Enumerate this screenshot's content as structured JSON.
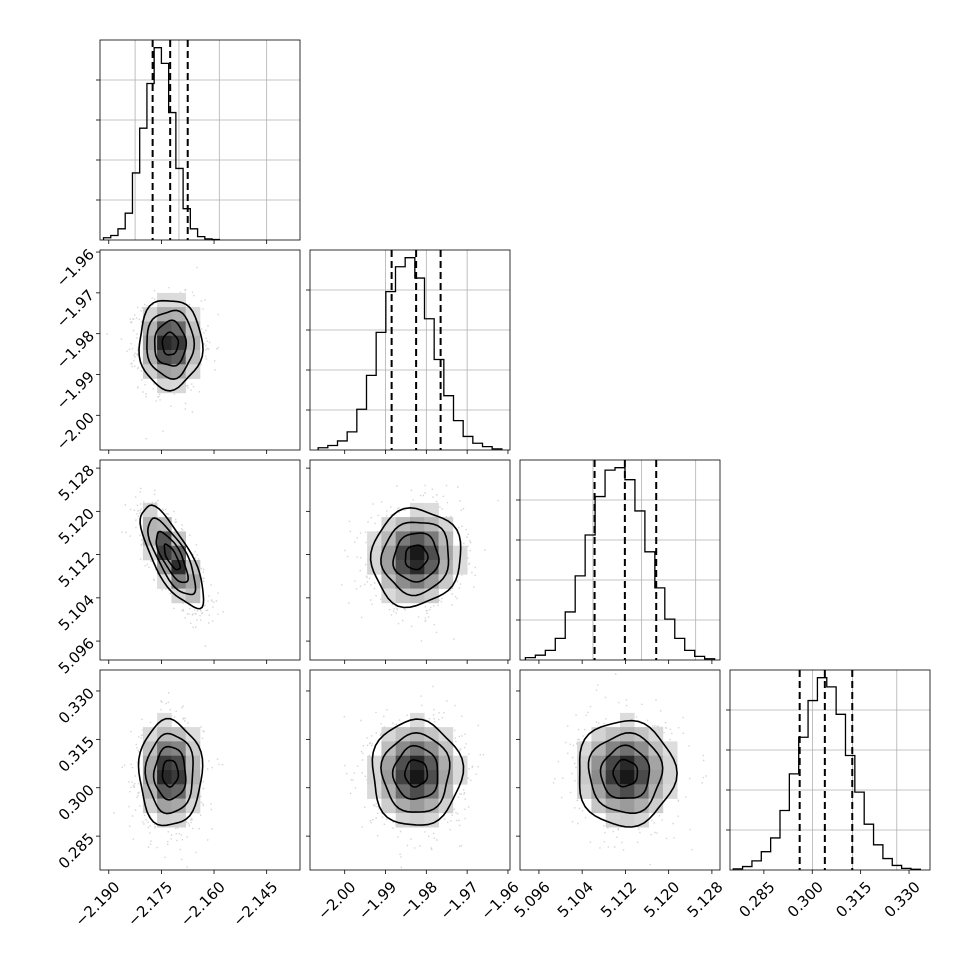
{
  "chart_data": {
    "type": "corner",
    "n_params": 4,
    "params": [
      {
        "range": [
          -2.1925,
          -2.1355
        ],
        "ticks": [
          -2.19,
          -2.175,
          -2.16,
          -2.145
        ],
        "tick_labels": [
          "−2.190",
          "−2.175",
          "−2.160",
          "−2.145"
        ],
        "hist_grid": [
          -2.1825,
          -2.17,
          -2.1585,
          -2.145
        ],
        "quantiles": [
          -2.1775,
          -2.1725,
          -2.1675
        ],
        "hist_range": [
          -2.1915,
          -2.1585
        ],
        "hist": [
          1,
          2,
          5,
          12,
          30,
          50,
          70,
          86,
          79,
          57,
          32,
          14,
          5,
          1.5,
          0.5,
          0.2
        ]
      },
      {
        "range": [
          -2.0085,
          -1.9595
        ],
        "ticks": [
          -2.0,
          -1.99,
          -1.98,
          -1.97,
          -1.96
        ],
        "tick_labels": [
          "−2.00",
          "−1.99",
          "−1.98",
          "−1.97",
          "−1.96"
        ],
        "hist_grid": [
          -1.99,
          -1.98,
          -1.97
        ],
        "quantiles": [
          -1.9885,
          -1.9825,
          -1.9765
        ],
        "hist_range": [
          -2.0065,
          -1.9615
        ],
        "hist": [
          1,
          2,
          4,
          8,
          18,
          33,
          52,
          70,
          81,
          85,
          76,
          58,
          40,
          24,
          13,
          6,
          3,
          1.5,
          0.5
        ]
      },
      {
        "range": [
          5.0925,
          5.1295
        ],
        "ticks": [
          5.096,
          5.104,
          5.112,
          5.12,
          5.128
        ],
        "tick_labels": [
          "5.096",
          "5.104",
          "5.112",
          "5.120",
          "5.128"
        ],
        "hist_grid": [
          5.106,
          5.115,
          5.125
        ],
        "quantiles": [
          5.1063,
          5.1119,
          5.1177
        ],
        "hist_range": [
          5.0935,
          5.1285
        ],
        "hist": [
          1,
          2,
          4,
          9,
          20,
          35,
          52,
          68,
          79,
          80,
          75,
          62,
          45,
          30,
          17,
          9,
          4,
          1.5,
          0.5
        ]
      },
      {
        "range": [
          0.2745,
          0.3365
        ],
        "ticks": [
          0.285,
          0.3,
          0.315,
          0.33
        ],
        "tick_labels": [
          "0.285",
          "0.300",
          "0.315",
          "0.330"
        ],
        "hist_grid": [
          0.3001,
          0.3125,
          0.3262
        ],
        "quantiles": [
          0.2961,
          0.3039,
          0.3124
        ],
        "hist_range": [
          0.2755,
          0.3335
        ],
        "hist": [
          0.5,
          1.5,
          4,
          8,
          14,
          26,
          42,
          58,
          74,
          84,
          80,
          68,
          50,
          34,
          20,
          11,
          5,
          2,
          0.7,
          0.3
        ]
      }
    ],
    "pairs": [
      {
        "row": 1,
        "col": 0,
        "center": [
          -2.1725,
          -1.9825
        ],
        "sigma": [
          0.0045,
          0.0055
        ],
        "rho": 0.0
      },
      {
        "row": 2,
        "col": 0,
        "center": [
          -2.172,
          5.1115
        ],
        "sigma": [
          0.0045,
          0.0047
        ],
        "rho": -0.75
      },
      {
        "row": 2,
        "col": 1,
        "center": [
          -1.9825,
          5.1115
        ],
        "sigma": [
          0.0055,
          0.0045
        ],
        "rho": 0.05
      },
      {
        "row": 3,
        "col": 0,
        "center": [
          -2.1725,
          0.3045
        ],
        "sigma": [
          0.0045,
          0.0082
        ],
        "rho": 0.0
      },
      {
        "row": 3,
        "col": 1,
        "center": [
          -1.9825,
          0.3045
        ],
        "sigma": [
          0.0055,
          0.0082
        ],
        "rho": 0.0
      },
      {
        "row": 3,
        "col": 2,
        "center": [
          5.112,
          0.3045
        ],
        "sigma": [
          0.0045,
          0.0082
        ],
        "rho": 0.0
      }
    ],
    "contour_sigmas": [
      0.5,
      1.0,
      1.5,
      2.0
    ],
    "grid": true,
    "quantile_lines": "dashed"
  }
}
